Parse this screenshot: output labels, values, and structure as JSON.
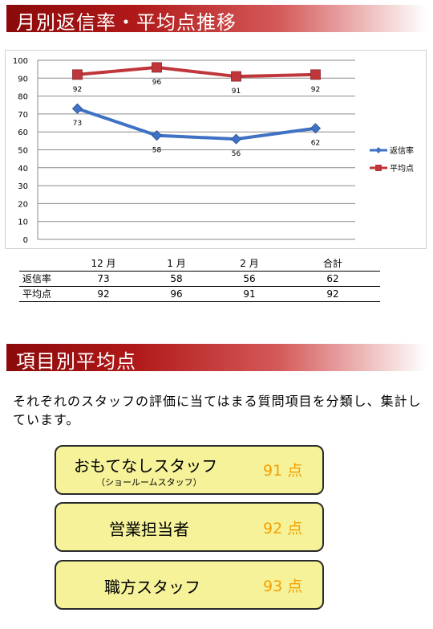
{
  "section1": {
    "title": "月別返信率・平均点推移"
  },
  "section2": {
    "title": "項目別平均点",
    "description": "それぞれのスタッフの評価に当てはまる質問項目を分類し、集計しています。"
  },
  "chart_data": {
    "type": "line",
    "categories": [
      "12 月",
      "1 月",
      "2 月",
      "合計"
    ],
    "ylim": [
      0,
      100
    ],
    "yticks": [
      0,
      10,
      20,
      30,
      40,
      50,
      60,
      70,
      80,
      90,
      100
    ],
    "grid": true,
    "legend_position": "right",
    "series": [
      {
        "name": "返信率",
        "values": [
          73,
          58,
          56,
          62
        ],
        "color": "#3f72c4",
        "marker": "diamond"
      },
      {
        "name": "平均点",
        "values": [
          92,
          96,
          91,
          92
        ],
        "color": "#c0373b",
        "marker": "square"
      }
    ]
  },
  "table": {
    "headers": [
      "",
      "12 月",
      "1 月",
      "2 月",
      "合計"
    ],
    "rows": [
      {
        "label": "返信率",
        "values": [
          "73",
          "58",
          "56",
          "62"
        ]
      },
      {
        "label": "平均点",
        "values": [
          "92",
          "96",
          "91",
          "92"
        ]
      }
    ]
  },
  "cards": [
    {
      "label": "おもてなしスタッフ",
      "sublabel": "（ショールームスタッフ）",
      "score": "91 点"
    },
    {
      "label": "営業担当者",
      "sublabel": "",
      "score": "92 点"
    },
    {
      "label": "職方スタッフ",
      "sublabel": "",
      "score": "93 点"
    }
  ],
  "colors": {
    "header_dark": "#8b0a0a",
    "card_fill": "#f5f29a",
    "score_text": "#f5a000"
  }
}
